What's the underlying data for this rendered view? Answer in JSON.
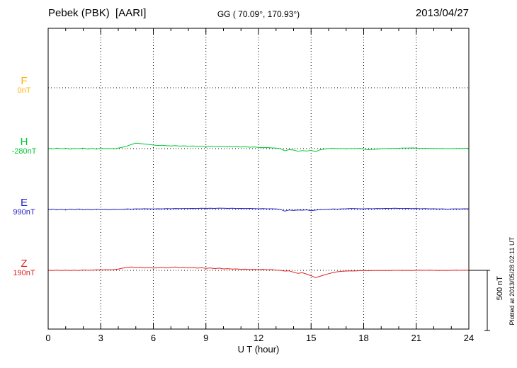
{
  "header": {
    "station": "Pebek (PBK)  [AARI]",
    "coords": "GG ( 70.09°, 170.93°)",
    "date": "2013/04/27"
  },
  "footer": {
    "xlabel": "U T (hour)",
    "plotted_note": "Plotted at 2013/05/28 02:11 UT"
  },
  "scalebar": {
    "label": "500 nT",
    "nT": 500
  },
  "axes": {
    "x_min": 0,
    "x_max": 24,
    "x_major_ticks": [
      0,
      3,
      6,
      9,
      12,
      15,
      18,
      21,
      24
    ],
    "x_minor_step": 1
  },
  "chart_data": {
    "type": "line",
    "title": "Pebek (PBK) [AARI] magnetogram 2013/04/27",
    "xlabel": "U T (hour)",
    "x_range": [
      0,
      24
    ],
    "x_step_hours": 0.25,
    "grid": "dotted vertical at 3-hour intervals, dotted horizontal baseline per component",
    "scale_bar_nT": 500,
    "series": [
      {
        "name": "F",
        "color": "#FFB400",
        "baseline_label": "0nT",
        "baseline_nT": 0,
        "values": []
      },
      {
        "name": "H",
        "color": "#00C832",
        "baseline_label": "-280nT",
        "baseline_nT": -280,
        "values": [
          2,
          -3,
          4,
          -2,
          3,
          -4,
          2,
          -2,
          5,
          -3,
          2,
          -4,
          3,
          -2,
          2,
          -3,
          5,
          12,
          22,
          35,
          45,
          42,
          38,
          35,
          30,
          26,
          28,
          24,
          22,
          25,
          21,
          23,
          20,
          22,
          18,
          20,
          17,
          19,
          16,
          18,
          15,
          17,
          14,
          16,
          13,
          15,
          12,
          14,
          10,
          8,
          9,
          6,
          4,
          0,
          -18,
          -8,
          -12,
          -22,
          -16,
          -20,
          -14,
          -25,
          -10,
          -4,
          0,
          3,
          -2,
          2,
          -3,
          2,
          -2,
          3,
          -5,
          -8,
          -6,
          -4,
          -2,
          0,
          2,
          1,
          3,
          5,
          4,
          6,
          4,
          2,
          3,
          1,
          2,
          0,
          1,
          -1,
          0,
          2,
          1,
          2,
          3
        ]
      },
      {
        "name": "E",
        "color": "#2020CC",
        "baseline_label": "990nT",
        "baseline_nT": 990,
        "values": [
          -2,
          3,
          -3,
          2,
          -4,
          3,
          -2,
          4,
          -3,
          2,
          -3,
          3,
          -2,
          2,
          -3,
          2,
          0,
          2,
          4,
          3,
          5,
          4,
          6,
          5,
          4,
          6,
          5,
          7,
          6,
          8,
          7,
          8,
          8,
          9,
          8,
          10,
          9,
          10,
          9,
          11,
          10,
          9,
          10,
          8,
          9,
          8,
          9,
          7,
          6,
          7,
          5,
          6,
          4,
          2,
          -14,
          -4,
          -8,
          -4,
          -6,
          -3,
          -10,
          -5,
          -2,
          0,
          2,
          4,
          3,
          5,
          6,
          8,
          7,
          6,
          5,
          7,
          6,
          8,
          7,
          9,
          8,
          10,
          9,
          8,
          9,
          7,
          8,
          6,
          7,
          5,
          6,
          4,
          5,
          3,
          4,
          5,
          4,
          6,
          5
        ]
      },
      {
        "name": "Z",
        "color": "#E02020",
        "baseline_label": "190nT",
        "baseline_nT": 190,
        "values": [
          0,
          -2,
          2,
          -1,
          1,
          -2,
          2,
          -1,
          3,
          1,
          2,
          4,
          3,
          5,
          4,
          6,
          10,
          18,
          24,
          28,
          22,
          26,
          20,
          24,
          18,
          22,
          25,
          20,
          24,
          28,
          22,
          26,
          20,
          24,
          18,
          22,
          16,
          20,
          14,
          18,
          12,
          14,
          10,
          12,
          8,
          10,
          6,
          8,
          6,
          8,
          4,
          6,
          2,
          0,
          -6,
          -4,
          -15,
          -25,
          -20,
          -32,
          -45,
          -60,
          -50,
          -38,
          -28,
          -18,
          -12,
          -8,
          -6,
          -4,
          -5,
          -3,
          -2,
          -3,
          -2,
          -2,
          -1,
          -2,
          -1,
          0,
          0,
          -1,
          0,
          -1,
          0,
          1,
          0,
          1,
          0,
          -1,
          0,
          -1,
          0,
          1,
          0,
          1,
          0
        ]
      }
    ]
  }
}
